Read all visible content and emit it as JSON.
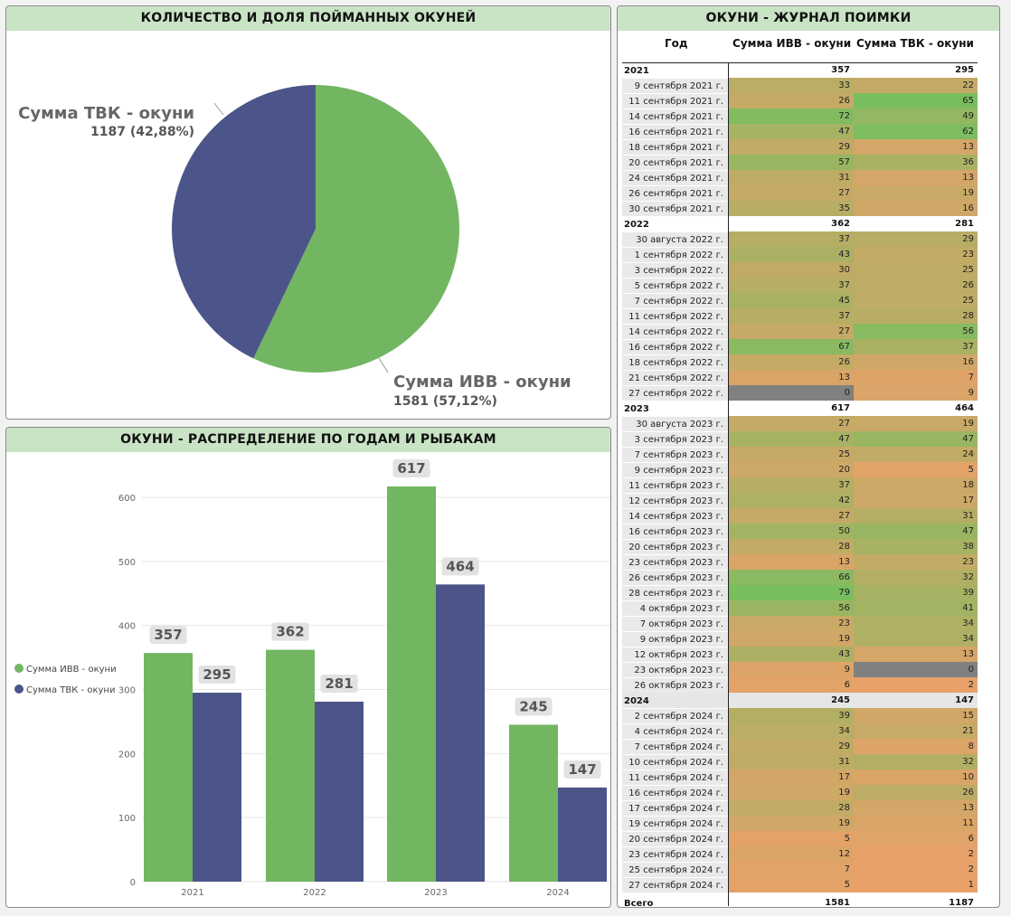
{
  "pie": {
    "title": "КОЛИЧЕСТВО И ДОЛЯ ПОЙМАННЫХ ОКУНЕЙ",
    "ivv_label": "Сумма ИВВ - окуни",
    "ivv_value": "1581 (57,12%)",
    "tvk_label": "Сумма ТВК - окуни",
    "tvk_value": "1187 (42,88%)"
  },
  "bars": {
    "title": "ОКУНИ - РАСПРЕДЕЛЕНИЕ ПО ГОДАМ И РЫБАКАМ"
  },
  "table": {
    "title": "ОКУНИ - ЖУРНАЛ ПОИМКИ",
    "col_year": "Год",
    "col_ivv": "Сумма ИВВ - окуни",
    "col_tvk": "Сумма ТВК - окуни",
    "groups": [
      {
        "year": "2021",
        "ivv": "357",
        "tvk": "295",
        "rows": [
          [
            "9 сентября 2021 г.",
            33,
            22
          ],
          [
            "11 сентября 2021 г.",
            26,
            65
          ],
          [
            "14 сентября 2021 г.",
            72,
            49
          ],
          [
            "16 сентября 2021 г.",
            47,
            62
          ],
          [
            "18 сентября 2021 г.",
            29,
            13
          ],
          [
            "20 сентября 2021 г.",
            57,
            36
          ],
          [
            "24 сентября 2021 г.",
            31,
            13
          ],
          [
            "26 сентября 2021 г.",
            27,
            19
          ],
          [
            "30 сентября 2021 г.",
            35,
            16
          ]
        ]
      },
      {
        "year": "2022",
        "ivv": "362",
        "tvk": "281",
        "rows": [
          [
            "30 августа 2022 г.",
            37,
            29
          ],
          [
            "1 сентября 2022 г.",
            43,
            23
          ],
          [
            "3 сентября 2022 г.",
            30,
            25
          ],
          [
            "5 сентября 2022 г.",
            37,
            26
          ],
          [
            "7 сентября 2022 г.",
            45,
            25
          ],
          [
            "11 сентября 2022 г.",
            37,
            28
          ],
          [
            "14 сентября 2022 г.",
            27,
            56
          ],
          [
            "16 сентября 2022 г.",
            67,
            37
          ],
          [
            "18 сентября 2022 г.",
            26,
            16
          ],
          [
            "21 сентября 2022 г.",
            13,
            7
          ],
          [
            "27 сентября 2022 г.",
            0,
            9
          ]
        ]
      },
      {
        "year": "2023",
        "ivv": "617",
        "tvk": "464",
        "rows": [
          [
            "30 августа 2023 г.",
            27,
            19
          ],
          [
            "3 сентября 2023 г.",
            47,
            47
          ],
          [
            "7 сентября 2023 г.",
            25,
            24
          ],
          [
            "9 сентября 2023 г.",
            20,
            5
          ],
          [
            "11 сентября 2023 г.",
            37,
            18
          ],
          [
            "12 сентября 2023 г.",
            42,
            17
          ],
          [
            "14 сентября 2023 г.",
            27,
            31
          ],
          [
            "16 сентября 2023 г.",
            50,
            47
          ],
          [
            "20 сентября 2023 г.",
            28,
            38
          ],
          [
            "23 сентября 2023 г.",
            13,
            23
          ],
          [
            "26 сентября 2023 г.",
            66,
            32
          ],
          [
            "28 сентября 2023 г.",
            79,
            39
          ],
          [
            "4 октября 2023 г.",
            56,
            41
          ],
          [
            "7 октября 2023 г.",
            23,
            34
          ],
          [
            "9 октября 2023 г.",
            19,
            34
          ],
          [
            "12 октября 2023 г.",
            43,
            13
          ],
          [
            "23 октября 2023 г.",
            9,
            0
          ],
          [
            "26 октября 2023 г.",
            6,
            2
          ]
        ]
      },
      {
        "year": "2024",
        "ivv": "245",
        "tvk": "147",
        "rows": [
          [
            "2 сентября 2024 г.",
            39,
            15
          ],
          [
            "4 сентября 2024 г.",
            34,
            21
          ],
          [
            "7 сентября 2024 г.",
            29,
            8
          ],
          [
            "10 сентября 2024 г.",
            31,
            32
          ],
          [
            "11 сентября 2024 г.",
            17,
            10
          ],
          [
            "16 сентября 2024 г.",
            19,
            26
          ],
          [
            "17 сентября 2024 г.",
            28,
            13
          ],
          [
            "19 сентября 2024 г.",
            19,
            11
          ],
          [
            "20 сентября 2024 г.",
            5,
            6
          ],
          [
            "23 сентября 2024 г.",
            12,
            2
          ],
          [
            "25 сентября 2024 г.",
            7,
            2
          ],
          [
            "27 сентября 2024 г.",
            5,
            1
          ]
        ]
      }
    ],
    "total_label": "Всего",
    "total_ivv": "1581",
    "total_tvk": "1187"
  },
  "colors": {
    "ivv": "#72b662",
    "tvk": "#4b5589",
    "zero": "#808080"
  },
  "chart_data": [
    {
      "type": "pie",
      "title": "КОЛИЧЕСТВО И ДОЛЯ ПОЙМАННЫХ ОКУНЕЙ",
      "slices": [
        {
          "name": "Сумма ИВВ - окуни",
          "value": 1581,
          "percent": 57.12
        },
        {
          "name": "Сумма ТВК - окуни",
          "value": 1187,
          "percent": 42.88
        }
      ]
    },
    {
      "type": "bar",
      "title": "ОКУНИ - РАСПРЕДЕЛЕНИЕ ПО ГОДАМ И РЫБАКАМ",
      "categories": [
        "2021",
        "2022",
        "2023",
        "2024"
      ],
      "series": [
        {
          "name": "Сумма ИВВ - окуни",
          "values": [
            357,
            362,
            617,
            245
          ]
        },
        {
          "name": "Сумма ТВК - окуни",
          "values": [
            295,
            281,
            464,
            147
          ]
        }
      ],
      "yticks": [
        0,
        100,
        200,
        300,
        400,
        500,
        600
      ],
      "ylim": [
        0,
        650
      ],
      "grid": true,
      "legend": "left"
    }
  ]
}
